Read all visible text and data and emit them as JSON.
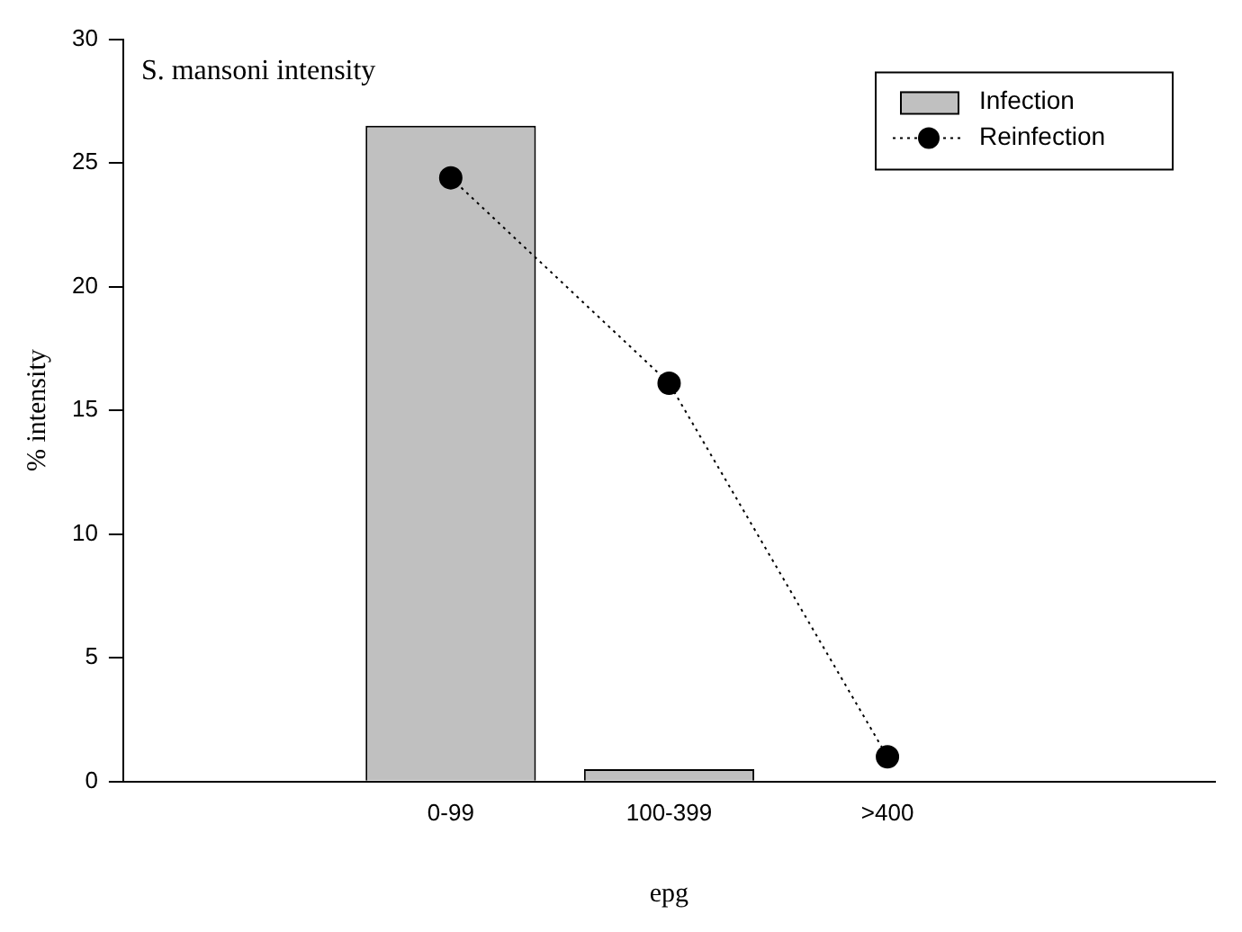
{
  "chart_data": {
    "type": "bar",
    "title": "S. mansoni intensity",
    "xlabel": "epg",
    "ylabel": "% intensity",
    "categories": [
      null,
      "0-99",
      "100-399",
      ">400",
      null
    ],
    "series": [
      {
        "name": "Infection",
        "color": "#c0c0c0",
        "values": [
          null,
          26.5,
          0.5,
          0,
          null
        ]
      },
      {
        "name": "Reinfection",
        "type": "line",
        "color": "#000000",
        "values": [
          null,
          24.4,
          16.1,
          1.0,
          null
        ],
        "marker": "circle",
        "line_style": "dotted"
      }
    ],
    "ylim": [
      0,
      30
    ],
    "yticks": [
      0,
      5,
      10,
      15,
      20,
      25,
      30
    ],
    "grid": false,
    "legend": "top right"
  }
}
